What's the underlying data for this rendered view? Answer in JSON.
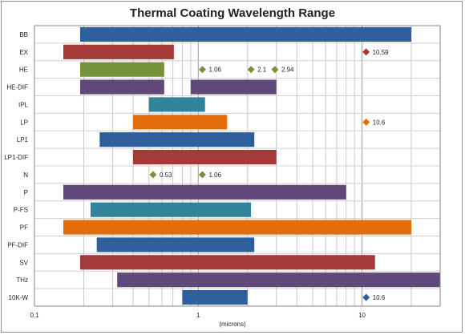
{
  "chart_data": {
    "type": "bar",
    "orientation": "horizontal-range",
    "title": "Thermal Coating Wavelength Range",
    "xlabel": "(microns)",
    "ylabel": "",
    "xscale": "log",
    "xlim": [
      0.1,
      30
    ],
    "x_ticks": [
      {
        "value": 0.1,
        "label": "0.1"
      },
      {
        "value": 1,
        "label": "1"
      },
      {
        "value": 10,
        "label": "10"
      }
    ],
    "grid": "vertical minor and major",
    "categories": [
      "BB",
      "EX",
      "HE",
      "HE-DIF",
      "IPL",
      "LP",
      "LP1",
      "LP1-DIF",
      "N",
      "P",
      "P-FS",
      "PF",
      "PF-DIF",
      "SV",
      "THz",
      "10K-W"
    ],
    "series": [
      {
        "category": "BB",
        "color": "#2e5f9c",
        "ranges": [
          [
            0.19,
            20
          ]
        ],
        "points": []
      },
      {
        "category": "EX",
        "color": "#a33a37",
        "ranges": [
          [
            0.15,
            0.71
          ]
        ],
        "points": [
          {
            "x": 10.59,
            "label": "10.59"
          }
        ]
      },
      {
        "category": "HE",
        "color": "#76933c",
        "ranges": [
          [
            0.19,
            0.62
          ]
        ],
        "points": [
          {
            "x": 1.06,
            "label": "1.06"
          },
          {
            "x": 2.1,
            "label": "2.1"
          },
          {
            "x": 2.94,
            "label": "2.94"
          }
        ]
      },
      {
        "category": "HE-DIF",
        "color": "#60497a",
        "ranges": [
          [
            0.19,
            0.62
          ],
          [
            0.9,
            3
          ]
        ],
        "points": []
      },
      {
        "category": "IPL",
        "color": "#31849b",
        "ranges": [
          [
            0.5,
            1.1
          ]
        ],
        "points": []
      },
      {
        "category": "LP",
        "color": "#e46c0a",
        "ranges": [
          [
            0.4,
            1.5
          ]
        ],
        "points": [
          {
            "x": 10.6,
            "label": "10.6"
          }
        ]
      },
      {
        "category": "LP1",
        "color": "#2e5f9c",
        "ranges": [
          [
            0.25,
            2.2
          ]
        ],
        "points": []
      },
      {
        "category": "LP1-DIF",
        "color": "#a33a37",
        "ranges": [
          [
            0.4,
            3
          ]
        ],
        "points": []
      },
      {
        "category": "N",
        "color": "#76933c",
        "ranges": [],
        "points": [
          {
            "x": 0.53,
            "label": "0.53"
          },
          {
            "x": 1.06,
            "label": "1.06"
          }
        ]
      },
      {
        "category": "P",
        "color": "#60497a",
        "ranges": [
          [
            0.15,
            8
          ]
        ],
        "points": []
      },
      {
        "category": "P-FS",
        "color": "#31849b",
        "ranges": [
          [
            0.22,
            2.1
          ]
        ],
        "points": []
      },
      {
        "category": "PF",
        "color": "#e46c0a",
        "ranges": [
          [
            0.15,
            20
          ]
        ],
        "points": []
      },
      {
        "category": "PF-DIF",
        "color": "#2e5f9c",
        "ranges": [
          [
            0.24,
            2.2
          ]
        ],
        "points": []
      },
      {
        "category": "SV",
        "color": "#a33a37",
        "ranges": [
          [
            0.19,
            12
          ]
        ],
        "points": []
      },
      {
        "category": "THz",
        "color": "#60497a",
        "ranges": [
          [
            0.32,
            30
          ]
        ],
        "points": []
      },
      {
        "category": "10K-W",
        "color": "#2e5f9c",
        "ranges": [
          [
            0.8,
            2
          ]
        ],
        "points": [
          {
            "x": 10.6,
            "label": "10.6"
          }
        ]
      }
    ]
  }
}
